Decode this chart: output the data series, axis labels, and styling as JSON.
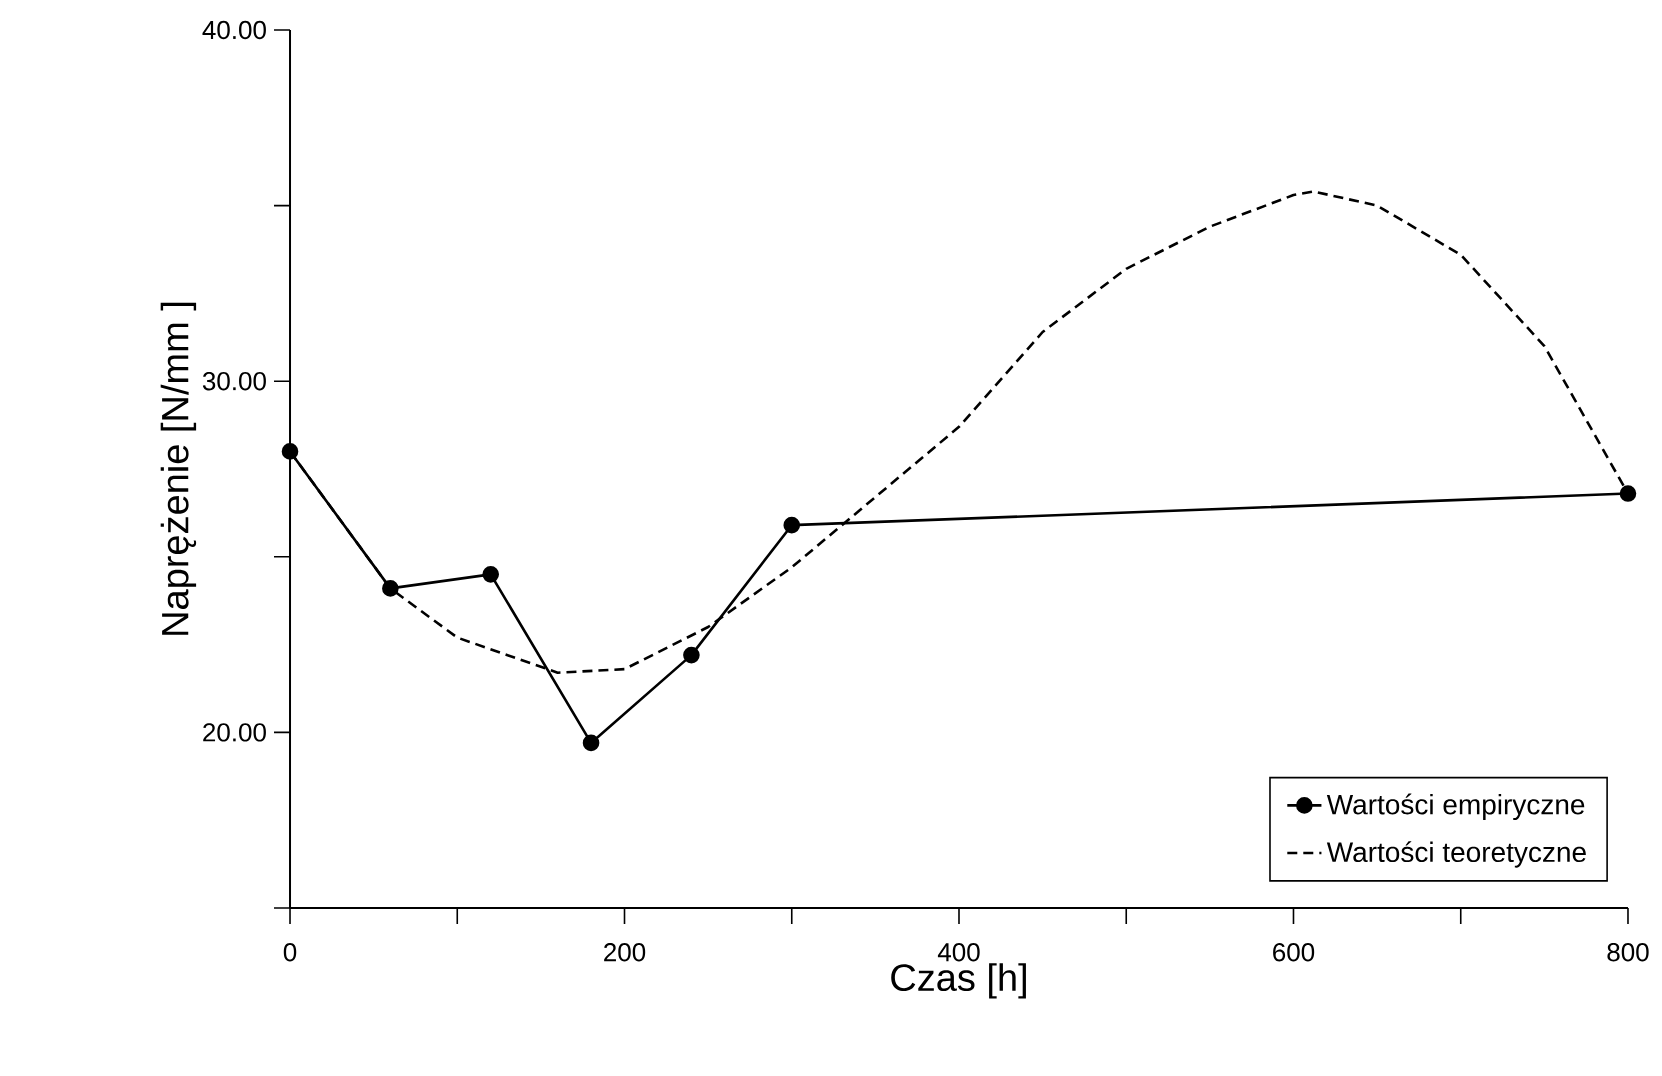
{
  "chart_data": {
    "type": "line",
    "xlabel": "Czas [h]",
    "ylabel": "Naprężenie [N/mm  ]",
    "xlim": [
      0,
      800
    ],
    "ylim": [
      15,
      40
    ],
    "xticks": [
      0,
      {
        "value": 100,
        "label": null
      },
      200,
      {
        "value": 300,
        "label": null
      },
      400,
      {
        "value": 500,
        "label": null
      },
      600,
      {
        "value": 700,
        "label": null
      },
      800
    ],
    "yticks": [
      {
        "value": 15,
        "label": null
      },
      {
        "value": 20,
        "label": "20.00"
      },
      {
        "value": 25,
        "label": null
      },
      {
        "value": 30,
        "label": "30.00"
      },
      {
        "value": 35,
        "label": null
      },
      {
        "value": 40,
        "label": "40.00"
      }
    ],
    "grid": false,
    "legend": "bottom right",
    "series": [
      {
        "name": "Wartości empiryczne",
        "color": "#000000",
        "marker": "circle",
        "line_style": "solid",
        "x": [
          0,
          60,
          120,
          180,
          240,
          300,
          800
        ],
        "values": [
          28.0,
          24.1,
          24.5,
          19.7,
          22.2,
          25.9,
          26.8
        ]
      },
      {
        "name": "Wartości teoretyczne",
        "color": "#000000",
        "marker": "none",
        "line_style": "dashed",
        "x": [
          0,
          60,
          100,
          160,
          200,
          250,
          300,
          350,
          400,
          450,
          500,
          550,
          600,
          612,
          650,
          700,
          750,
          800
        ],
        "values": [
          28.0,
          24.1,
          22.7,
          21.7,
          21.8,
          23.0,
          24.7,
          26.7,
          28.7,
          31.4,
          33.2,
          34.4,
          35.3,
          35.4,
          35.0,
          33.6,
          31.0,
          26.8
        ]
      }
    ]
  }
}
